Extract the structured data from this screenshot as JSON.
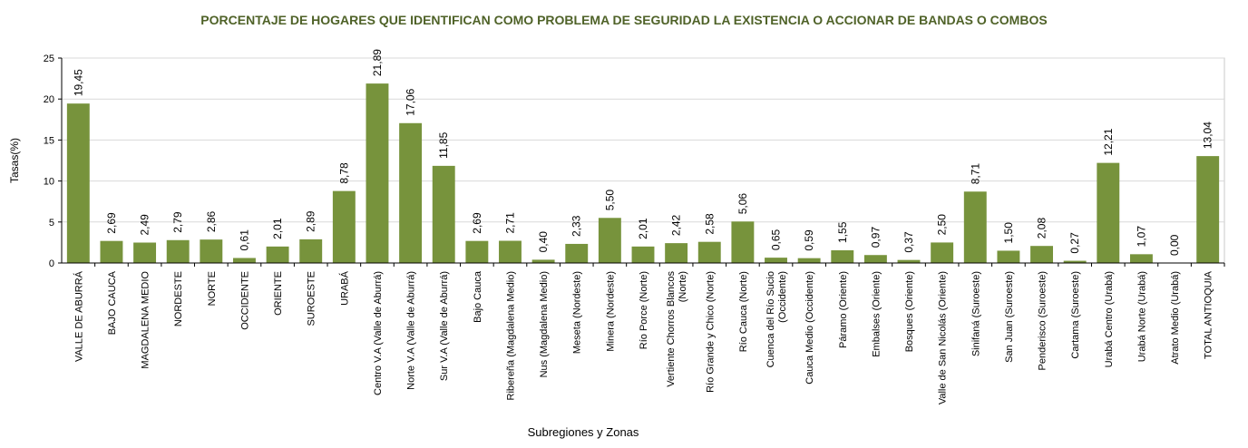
{
  "chart_data": {
    "type": "bar",
    "title": "PORCENTAJE DE HOGARES QUE IDENTIFICAN COMO PROBLEMA DE SEGURIDAD LA EXISTENCIA O ACCIONAR DE BANDAS O COMBOS",
    "xlabel": "Subregiones y Zonas",
    "ylabel": "Tasas(%)",
    "ylim": [
      0,
      25
    ],
    "yticks": [
      "0",
      "5",
      "10",
      "15",
      "20",
      "25"
    ],
    "grid": true,
    "bar_color": "#77933c",
    "categories": [
      [
        "VALLE DE ABURRÁ"
      ],
      [
        "BAJO CAUCA"
      ],
      [
        "MAGDALENA MEDIO"
      ],
      [
        "NORDESTE"
      ],
      [
        "NORTE"
      ],
      [
        "OCCIDENTE"
      ],
      [
        "ORIENTE"
      ],
      [
        "SUROESTE"
      ],
      [
        "URABÁ"
      ],
      [
        "Centro V.A (Valle de Aburrá)"
      ],
      [
        "Norte V.A (Valle de Aburrá)"
      ],
      [
        "Sur V.A (Valle de Aburrá)"
      ],
      [
        "Bajo Cauca"
      ],
      [
        "Ribereña  (Magdalena Medio)"
      ],
      [
        "Nus  (Magdalena Medio)"
      ],
      [
        "Meseta  (Nordeste)"
      ],
      [
        "Minera  (Nordeste)"
      ],
      [
        "Río Porce   (Norte)"
      ],
      [
        "Vertiente Chorros Blancos",
        "(Norte)"
      ],
      [
        "Río Grande y Chico  (Norte)"
      ],
      [
        "Río Cauca  (Norte)"
      ],
      [
        "Cuenca del Río Sucio",
        "(Occidente)"
      ],
      [
        "Cauca Medio  (Occidente)"
      ],
      [
        "Páramo  (Oriente)"
      ],
      [
        "Embalses (Oriente)"
      ],
      [
        "Bosques  (Oriente)"
      ],
      [
        "Valle de San Nicolás (Oriente)"
      ],
      [
        "Sinifaná  (Suroeste)"
      ],
      [
        "San Juan  (Suroeste)"
      ],
      [
        "Penderisco  (Suroeste)"
      ],
      [
        "Cartama  (Suroeste)"
      ],
      [
        "Urabá Centro  (Urabá)"
      ],
      [
        "Urabá Norte  (Urabá)"
      ],
      [
        "Atrato Medio  (Urabá)"
      ],
      [
        "TOTAL ANTIOQUIA"
      ]
    ],
    "values": [
      19.45,
      2.69,
      2.49,
      2.79,
      2.86,
      0.61,
      2.01,
      2.89,
      8.78,
      21.89,
      17.06,
      11.85,
      2.69,
      2.71,
      0.4,
      2.33,
      5.5,
      2.01,
      2.42,
      2.58,
      5.06,
      0.65,
      0.59,
      1.55,
      0.97,
      0.37,
      2.5,
      8.71,
      1.5,
      2.08,
      0.27,
      12.21,
      1.07,
      0.0,
      13.04
    ],
    "labels": [
      "19,45",
      "2,69",
      "2,49",
      "2,79",
      "2,86",
      "0,61",
      "2,01",
      "2,89",
      "8,78",
      "21,89",
      "17,06",
      "11,85",
      "2,69",
      "2,71",
      "0,40",
      "2,33",
      "5,50",
      "2,01",
      "2,42",
      "2,58",
      "5,06",
      "0,65",
      "0,59",
      "1,55",
      "0,97",
      "0,37",
      "2,50",
      "8,71",
      "1,50",
      "2,08",
      "0,27",
      "12,21",
      "1,07",
      "0,00",
      "13,04"
    ]
  }
}
